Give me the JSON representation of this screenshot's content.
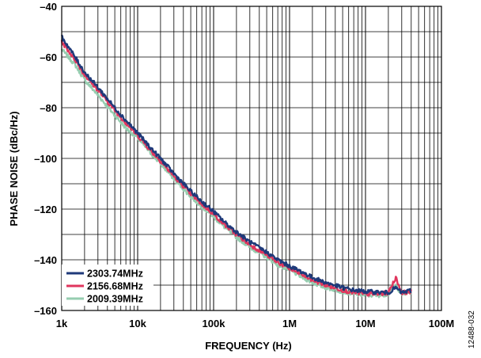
{
  "chart_data": {
    "type": "line",
    "xlabel": "FREQUENCY (Hz)",
    "ylabel": "PHASE NOISE (dBc/Hz)",
    "xscale": "log",
    "xlim": [
      1000,
      100000000
    ],
    "ylim": [
      -160,
      -40
    ],
    "x_ticks": [
      1000,
      10000,
      100000,
      1000000,
      10000000,
      100000000
    ],
    "x_tick_labels": [
      "1k",
      "10k",
      "100k",
      "1M",
      "10M",
      "100M"
    ],
    "y_ticks": [
      -40,
      -60,
      -80,
      -100,
      -120,
      -140,
      -160
    ],
    "y_tick_labels": [
      "–40",
      "–60",
      "–80",
      "–100",
      "–120",
      "–140",
      "–160"
    ],
    "grid": true,
    "legend_position": "bottom-left",
    "figure_id": "12488-032",
    "series": [
      {
        "name": "2303.74MHz",
        "color": "#1f3a7a",
        "x": [
          1000,
          1500,
          2000,
          3000,
          5000,
          7000,
          10000,
          15000,
          20000,
          30000,
          50000,
          70000,
          100000,
          150000,
          200000,
          300000,
          500000,
          700000,
          1000000,
          1500000,
          2000000,
          3000000,
          5000000,
          7000000,
          10000000,
          15000000,
          20000000,
          25000000,
          30000000,
          40000000
        ],
        "y": [
          -52,
          -60,
          -66,
          -72,
          -80,
          -85,
          -90,
          -96,
          -100,
          -106,
          -113,
          -117,
          -121,
          -126,
          -129,
          -133,
          -137,
          -140,
          -142.5,
          -145,
          -147,
          -149,
          -151,
          -152,
          -152.5,
          -152.8,
          -153,
          -151,
          -153,
          -152
        ]
      },
      {
        "name": "2156.68MHz",
        "color": "#e0365e",
        "x": [
          1000,
          1500,
          2000,
          3000,
          5000,
          7000,
          10000,
          15000,
          20000,
          30000,
          50000,
          70000,
          100000,
          150000,
          200000,
          300000,
          500000,
          700000,
          1000000,
          1500000,
          2000000,
          3000000,
          5000000,
          7000000,
          10000000,
          15000000,
          20000000,
          25000000,
          30000000,
          40000000
        ],
        "y": [
          -54,
          -61,
          -67,
          -73,
          -81,
          -86,
          -91,
          -97,
          -101,
          -107,
          -114,
          -118,
          -122,
          -127,
          -130,
          -134,
          -138,
          -141,
          -143.5,
          -146,
          -148,
          -150,
          -152,
          -153,
          -153.5,
          -153.5,
          -153,
          -147,
          -153,
          -152.5
        ]
      },
      {
        "name": "2009.39MHz",
        "color": "#96cdb0",
        "x": [
          1000,
          1500,
          2000,
          3000,
          5000,
          7000,
          10000,
          15000,
          20000,
          30000,
          50000,
          70000,
          100000,
          150000,
          200000,
          300000,
          500000,
          700000,
          1000000,
          1500000,
          2000000,
          3000000,
          5000000,
          7000000,
          10000000,
          15000000,
          20000000,
          25000000,
          30000000,
          40000000
        ],
        "y": [
          -57,
          -63,
          -69,
          -75,
          -83,
          -88,
          -92,
          -98,
          -102,
          -108,
          -115,
          -119,
          -123,
          -128,
          -131,
          -135,
          -139,
          -142,
          -144,
          -147,
          -149,
          -151,
          -152.5,
          -153.5,
          -154,
          -154,
          -153.5,
          -150,
          -153.5,
          -153
        ]
      }
    ]
  }
}
